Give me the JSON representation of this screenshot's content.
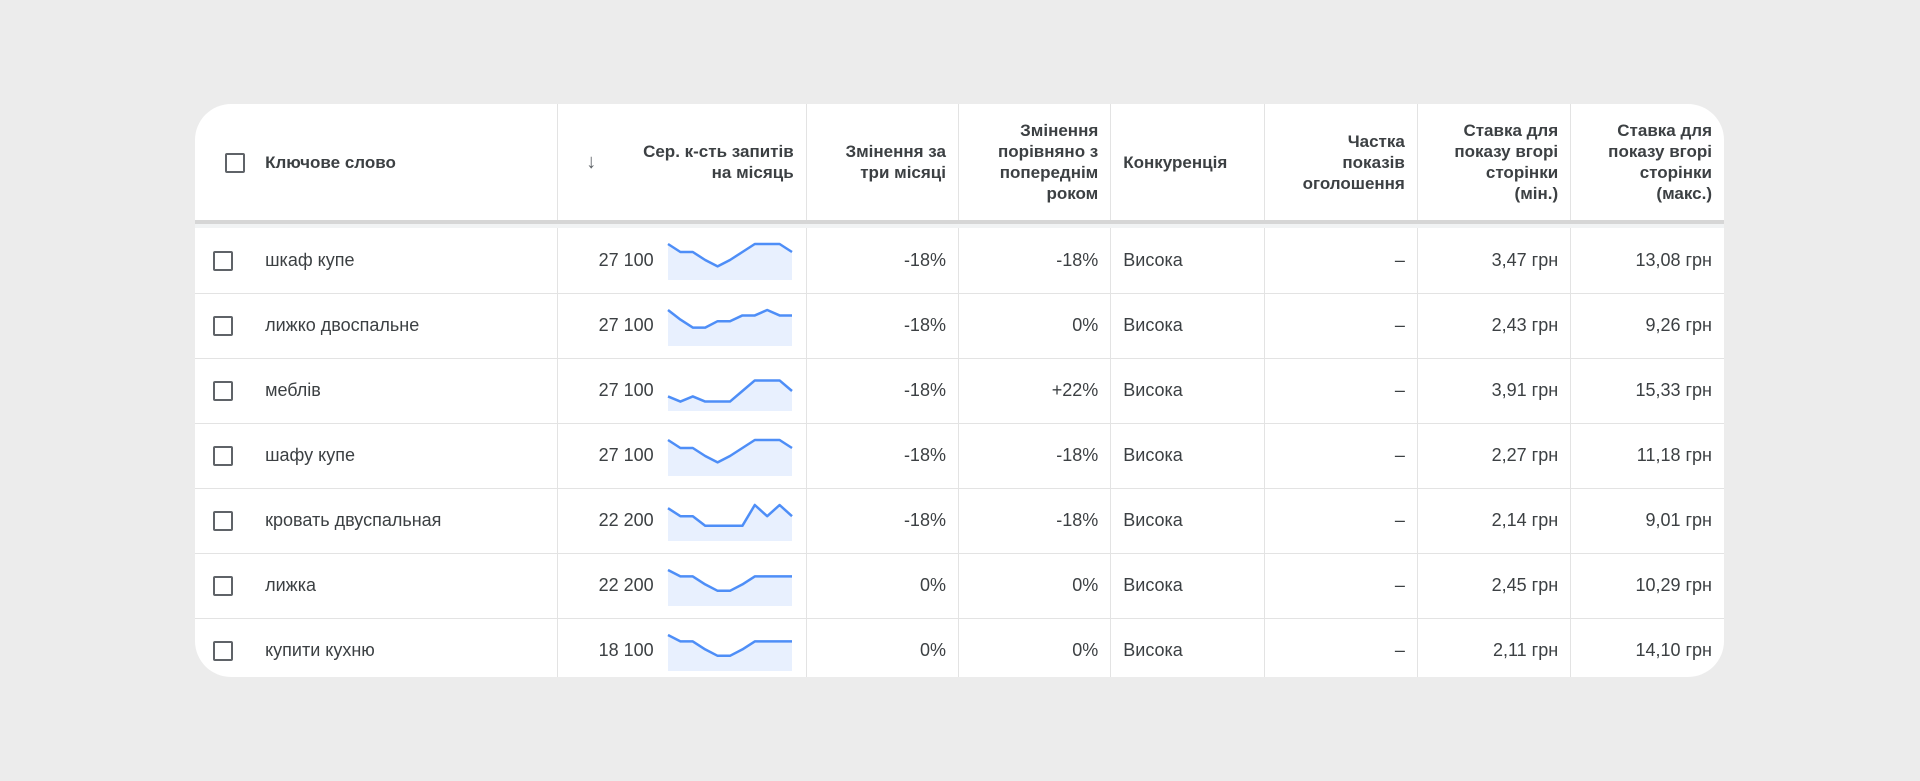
{
  "header": {
    "keyword": "Ключове слово",
    "volume": [
      "Сер. к-сть запитів",
      "на місяць"
    ],
    "three_month": [
      "Змінення за",
      "три місяці"
    ],
    "yoy": [
      "Змінення",
      "порівняно з",
      "попереднім",
      "роком"
    ],
    "competition": "Конкуренція",
    "impression_share": [
      "Частка",
      "показів",
      "оголошення"
    ],
    "bid_low": [
      "Ставка для",
      "показу вгорі",
      "сторінки",
      "(мін.)"
    ],
    "bid_high": [
      "Ставка для",
      "показу вгорі",
      "сторінки",
      "(макс.)"
    ]
  },
  "icons": {
    "sort": "arrow-down-icon",
    "checkbox": "checkbox-icon"
  },
  "colors": {
    "trend_line": "#4e8ef7",
    "trend_fill": "#e8f0fe"
  },
  "rows": [
    {
      "keyword": "шкаф купе",
      "volume": "27 100",
      "three_month": "-18%",
      "yoy": "-18%",
      "competition": "Висока",
      "impression_share": "–",
      "bid_low": "3,47 грн",
      "bid_high": "13,08 грн",
      "trend": [
        10,
        7.5,
        7.5,
        5,
        3,
        5,
        7.5,
        10,
        10,
        10,
        7.5
      ]
    },
    {
      "keyword": "лижко двоспальне",
      "volume": "27 100",
      "three_month": "-18%",
      "yoy": "0%",
      "competition": "Висока",
      "impression_share": "–",
      "bid_low": "2,43 грн",
      "bid_high": "9,26 грн",
      "trend": [
        10,
        7,
        4.5,
        4.5,
        6.5,
        6.5,
        8.3,
        8.3,
        10,
        8.3,
        8.3
      ]
    },
    {
      "keyword": "меблів",
      "volume": "27 100",
      "three_month": "-18%",
      "yoy": "+22%",
      "competition": "Висока",
      "impression_share": "–",
      "bid_low": "3,91 грн",
      "bid_high": "15,33 грн",
      "trend": [
        3.3,
        1.7,
        3.3,
        1.7,
        1.7,
        1.7,
        5,
        8.3,
        8.3,
        8.3,
        5
      ]
    },
    {
      "keyword": "шафу купе",
      "volume": "27 100",
      "three_month": "-18%",
      "yoy": "-18%",
      "competition": "Висока",
      "impression_share": "–",
      "bid_low": "2,27 грн",
      "bid_high": "11,18 грн",
      "trend": [
        10,
        7.5,
        7.5,
        5,
        3,
        5,
        7.5,
        10,
        10,
        10,
        7.5
      ]
    },
    {
      "keyword": "кровать двуспальная",
      "volume": "22 200",
      "three_month": "-18%",
      "yoy": "-18%",
      "competition": "Висока",
      "impression_share": "–",
      "bid_low": "2,14 грн",
      "bid_high": "9,01 грн",
      "trend": [
        9,
        6.5,
        6.5,
        3.5,
        3.5,
        3.5,
        3.5,
        10,
        6.5,
        10,
        6.5
      ]
    },
    {
      "keyword": "лижка",
      "volume": "22 200",
      "three_month": "0%",
      "yoy": "0%",
      "competition": "Висока",
      "impression_share": "–",
      "bid_low": "2,45 грн",
      "bid_high": "10,29 грн",
      "trend": [
        10,
        8,
        8,
        5.5,
        3.5,
        3.5,
        5.5,
        8,
        8,
        8,
        8
      ]
    },
    {
      "keyword": "купити кухню",
      "volume": "18 100",
      "three_month": "0%",
      "yoy": "0%",
      "competition": "Висока",
      "impression_share": "–",
      "bid_low": "2,11 грн",
      "bid_high": "14,10 грн",
      "trend": [
        10,
        8,
        8,
        5.5,
        3.5,
        3.5,
        5.5,
        8,
        8,
        8,
        8
      ]
    }
  ]
}
